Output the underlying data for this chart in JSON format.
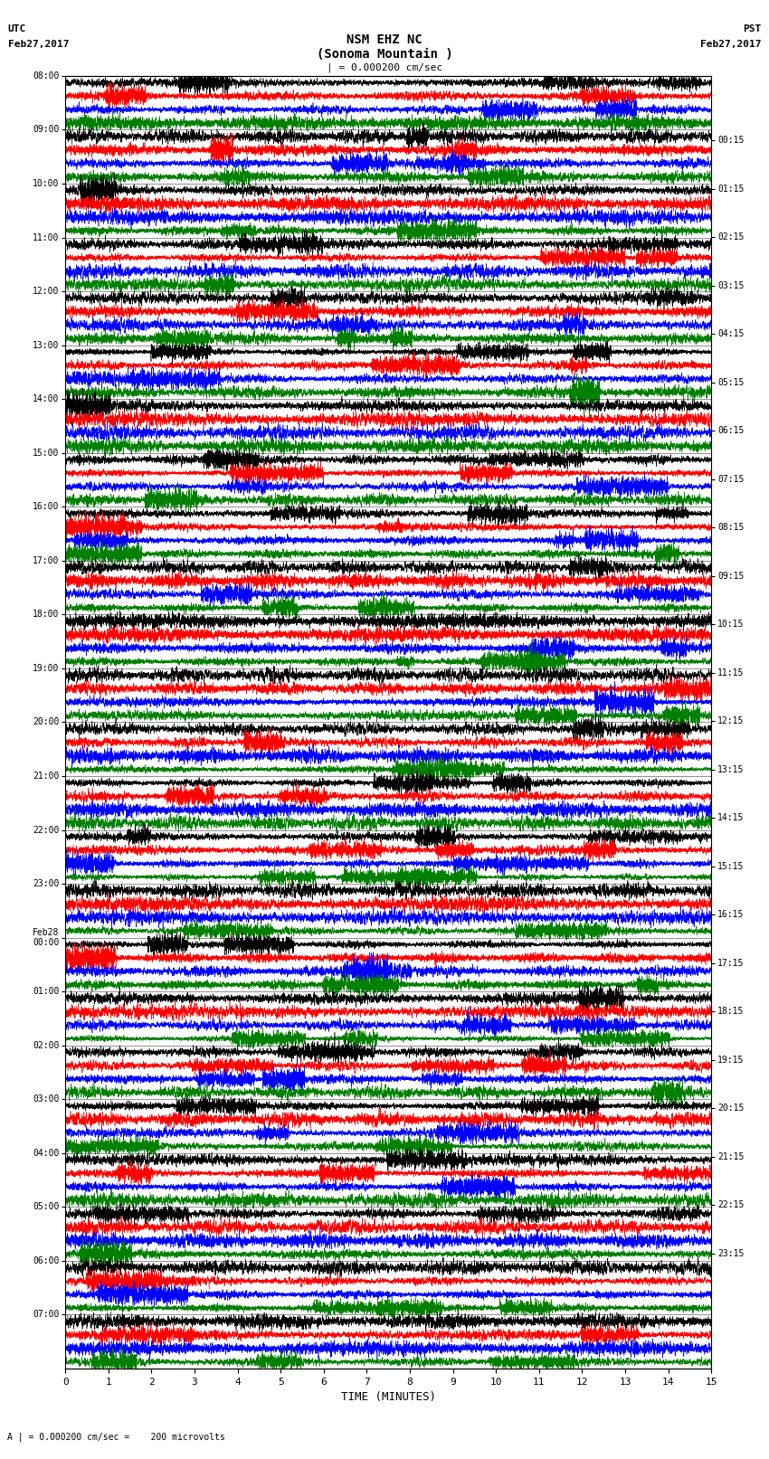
{
  "title_line1": "NSM EHZ NC",
  "title_line2": "(Sonoma Mountain )",
  "title_line3": "| = 0.000200 cm/sec",
  "left_header_top": "UTC",
  "left_header_bot": "Feb27,2017",
  "right_header_top": "PST",
  "right_header_bot": "Feb27,2017",
  "xlabel": "TIME (MINUTES)",
  "footer": "A | = 0.000200 cm/sec =    200 microvolts",
  "utc_labels": [
    "08:00",
    "09:00",
    "10:00",
    "11:00",
    "12:00",
    "13:00",
    "14:00",
    "15:00",
    "16:00",
    "17:00",
    "18:00",
    "19:00",
    "20:00",
    "21:00",
    "22:00",
    "23:00",
    "Feb28\n00:00",
    "01:00",
    "02:00",
    "03:00",
    "04:00",
    "05:00",
    "06:00",
    "07:00"
  ],
  "pst_labels": [
    "00:15",
    "01:15",
    "02:15",
    "03:15",
    "04:15",
    "05:15",
    "06:15",
    "07:15",
    "08:15",
    "09:15",
    "10:15",
    "11:15",
    "12:15",
    "13:15",
    "14:15",
    "15:15",
    "16:15",
    "17:15",
    "18:15",
    "19:15",
    "20:15",
    "21:15",
    "22:15",
    "23:15"
  ],
  "n_rows": 24,
  "n_cols": 4,
  "colors": [
    "black",
    "red",
    "blue",
    "green"
  ],
  "bg_color": "white",
  "xlim": [
    0,
    15
  ],
  "xticks": [
    0,
    1,
    2,
    3,
    4,
    5,
    6,
    7,
    8,
    9,
    10,
    11,
    12,
    13,
    14,
    15
  ]
}
